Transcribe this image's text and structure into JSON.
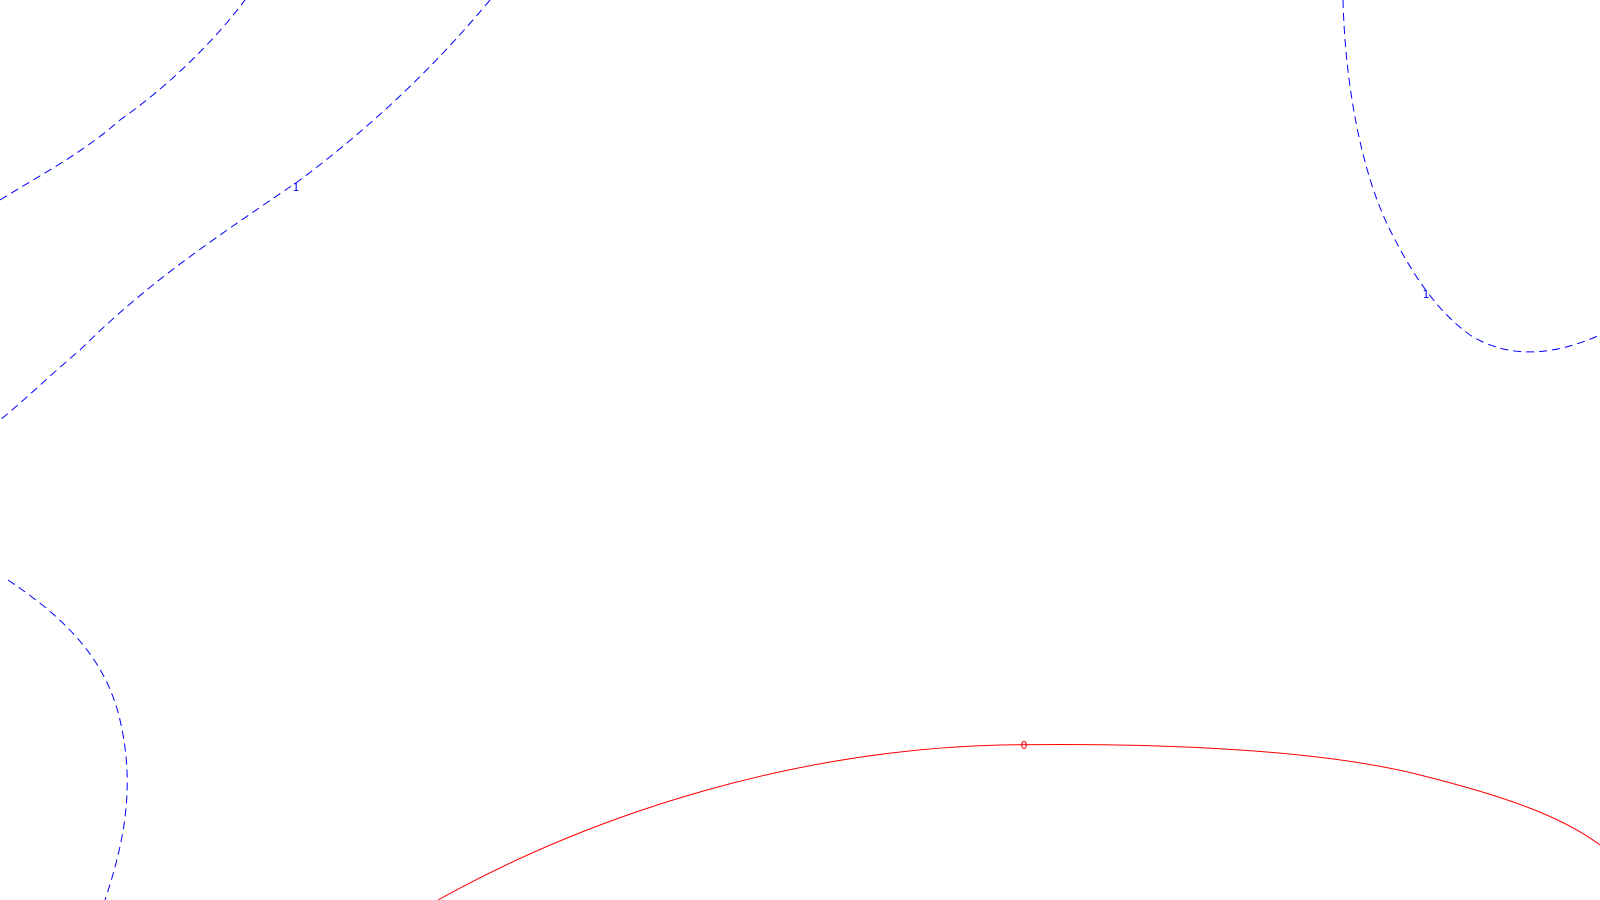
{
  "colors": {
    "background": "#ffffff",
    "positive_contour": "#0000ff",
    "zero_contour": "#ff0000"
  },
  "contours": [
    {
      "id": "blue-top-left-outer",
      "style": "dashed",
      "color": "#0000ff"
    },
    {
      "id": "blue-top-left-inner",
      "style": "dashed",
      "color": "#0000ff",
      "label": "1"
    },
    {
      "id": "blue-top-right",
      "style": "dashed",
      "color": "#0000ff",
      "label": "1"
    },
    {
      "id": "blue-bottom-left",
      "style": "dashed",
      "color": "#0000ff"
    },
    {
      "id": "red-bottom",
      "style": "solid",
      "color": "#ff0000",
      "label": "0"
    }
  ]
}
